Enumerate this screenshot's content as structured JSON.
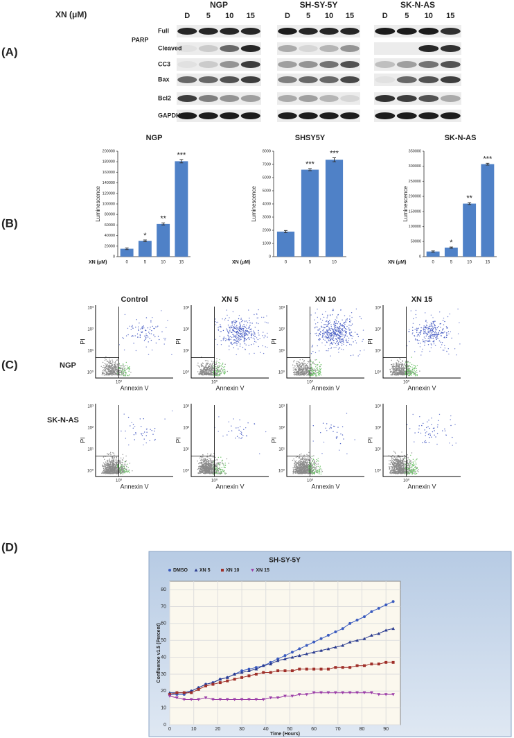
{
  "panel_a": {
    "label": "(A)",
    "dose_label": "XN (μM)",
    "cell_lines": [
      {
        "name": "NGP",
        "lanes": [
          "D",
          "5",
          "10",
          "15"
        ]
      },
      {
        "name": "SH-SY-5Y",
        "lanes": [
          "D",
          "5",
          "10",
          "15"
        ]
      },
      {
        "name": "SK-N-AS",
        "lanes": [
          "D",
          "5",
          "10",
          "15"
        ]
      }
    ],
    "group_label": "PARP",
    "rows": [
      "Full",
      "Cleaved",
      "CC3",
      "Bax",
      "Bcl2",
      "GAPDH"
    ]
  },
  "panel_b": {
    "label": "(B)"
  },
  "panel_c": {
    "label": "(C)",
    "columns": [
      "Control",
      "XN 5",
      "XN 10",
      "XN 15"
    ],
    "rows": [
      "NGP",
      "SK-N-AS"
    ],
    "x_label": "Annexin V",
    "y_label": "PI",
    "y_ticks": [
      "10⁰",
      "10¹",
      "10²",
      "10³"
    ],
    "x_ticks": [
      "10⁰"
    ]
  },
  "panel_d": {
    "label": "(D)"
  },
  "chart_data": [
    {
      "type": "bar",
      "title": "NGP",
      "x_label": "XN (μM)",
      "y_label": "Luminescence",
      "categories": [
        "0",
        "5",
        "10",
        "15"
      ],
      "values": [
        15000,
        30000,
        62000,
        181000
      ],
      "errors": [
        1500,
        1500,
        2000,
        3000
      ],
      "annotations": [
        null,
        "*",
        "**",
        "***"
      ],
      "color": "#4f81c7",
      "ylim": [
        0,
        200000
      ],
      "yticks": [
        0,
        20000,
        40000,
        60000,
        80000,
        100000,
        120000,
        140000,
        160000,
        180000,
        200000
      ]
    },
    {
      "type": "bar",
      "title": "SHSY5Y",
      "x_label": "XN (μM)",
      "y_label": "Luminescence",
      "categories": [
        "0",
        "5",
        "10"
      ],
      "values": [
        1900,
        6600,
        7350
      ],
      "errors": [
        80,
        80,
        150
      ],
      "annotations": [
        null,
        "***",
        "***"
      ],
      "color": "#4f81c7",
      "ylim": [
        0,
        8000
      ],
      "yticks": [
        0,
        1000,
        2000,
        3000,
        4000,
        5000,
        6000,
        7000,
        8000
      ]
    },
    {
      "type": "bar",
      "title": "SK-N-AS",
      "x_label": "XN (μM)",
      "y_label": "Luminescence",
      "categories": [
        "0",
        "5",
        "10",
        "15"
      ],
      "values": [
        17000,
        30000,
        176000,
        307000
      ],
      "errors": [
        2000,
        2000,
        3000,
        3000
      ],
      "annotations": [
        null,
        "*",
        "**",
        "***"
      ],
      "color": "#4f81c7",
      "ylim": [
        0,
        350000
      ],
      "yticks": [
        0,
        50000,
        100000,
        150000,
        200000,
        250000,
        300000,
        350000
      ]
    },
    {
      "type": "line",
      "title": "SH-SY-5Y",
      "x_label": "Time (Hours)",
      "y_label": "Confluence v1.5 (Percent)",
      "x": [
        0,
        3,
        6,
        9,
        12,
        15,
        18,
        21,
        24,
        27,
        30,
        33,
        36,
        39,
        42,
        45,
        48,
        51,
        54,
        57,
        60,
        63,
        66,
        69,
        72,
        75,
        78,
        81,
        84,
        87,
        90,
        93
      ],
      "series": [
        {
          "name": "DMSO",
          "color": "#3a5bbf",
          "marker": "circle",
          "values": [
            18,
            18,
            18,
            20,
            22,
            24,
            25,
            27,
            28,
            30,
            32,
            33,
            34,
            35,
            37,
            39,
            41,
            43,
            45,
            47,
            49,
            51,
            53,
            55,
            57,
            60,
            62,
            64,
            67,
            69,
            71,
            73
          ]
        },
        {
          "name": "XN 5",
          "color": "#2a3b8f",
          "marker": "triangle",
          "values": [
            19,
            19,
            19,
            20,
            22,
            24,
            25,
            27,
            28,
            30,
            31,
            32,
            33,
            35,
            36,
            38,
            39,
            40,
            41,
            42,
            43,
            44,
            45,
            46,
            47,
            49,
            50,
            51,
            53,
            54,
            56,
            57
          ]
        },
        {
          "name": "XN 10",
          "color": "#a0302a",
          "marker": "square",
          "values": [
            18,
            19,
            19,
            19,
            21,
            23,
            24,
            25,
            26,
            27,
            28,
            29,
            30,
            31,
            31,
            32,
            32,
            32,
            33,
            33,
            33,
            33,
            33,
            34,
            34,
            34,
            35,
            35,
            36,
            36,
            37,
            37
          ]
        },
        {
          "name": "XN 15",
          "color": "#9c3fa8",
          "marker": "down-triangle",
          "values": [
            17,
            16,
            15,
            15,
            15,
            16,
            15,
            15,
            15,
            15,
            15,
            15,
            15,
            15,
            16,
            16,
            17,
            17,
            18,
            18,
            19,
            19,
            19,
            19,
            19,
            19,
            19,
            19,
            19,
            18,
            18,
            18
          ]
        }
      ],
      "xlim": [
        0,
        96
      ],
      "ylim": [
        0,
        85
      ],
      "xticks": [
        0,
        10,
        20,
        30,
        40,
        50,
        60,
        70,
        80,
        90
      ],
      "yticks": [
        0,
        10,
        20,
        30,
        40,
        50,
        60,
        70,
        80
      ],
      "grid": true
    }
  ]
}
